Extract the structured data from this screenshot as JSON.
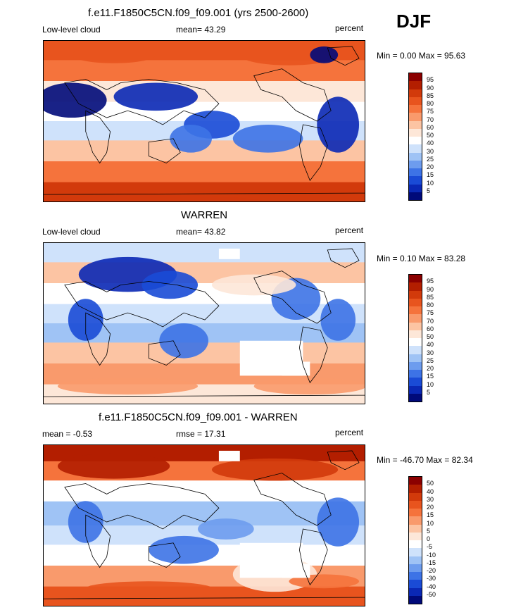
{
  "season": "DJF",
  "panels": [
    {
      "title": "f.e11.F1850C5CN.f09_f09.001 (yrs 2500-2600)",
      "left_label": "Low-level cloud",
      "center_label": "mean=  43.29",
      "right_label": "percent",
      "minmax": "Min =   0.00 Max =  95.63",
      "palette": "abs"
    },
    {
      "title": "WARREN",
      "left_label": "Low-level cloud",
      "center_label": "mean=  43.82",
      "right_label": "percent",
      "minmax": "Min =   0.10 Max =  83.28",
      "palette": "abs"
    },
    {
      "title": "f.e11.F1850C5CN.f09_f09.001 - WARREN",
      "left_label": "mean =  -0.53",
      "center_label": "rmse =  17.31",
      "right_label": "percent",
      "minmax": "Min = -46.70 Max =  82.34",
      "palette": "diff"
    }
  ],
  "colorbars": {
    "abs": {
      "labels": [
        "95",
        "90",
        "85",
        "80",
        "75",
        "70",
        "60",
        "50",
        "40",
        "30",
        "25",
        "20",
        "15",
        "10",
        "5"
      ],
      "colors": [
        "#8b0000",
        "#b31e00",
        "#d23a0b",
        "#e8541e",
        "#f5733c",
        "#f99a6c",
        "#fcc4a3",
        "#fde7d8",
        "#ffffff",
        "#cfe2fb",
        "#9fc3f5",
        "#6d9cee",
        "#3d73e6",
        "#1a4bd6",
        "#0a28b5",
        "#000a7a"
      ]
    },
    "diff": {
      "labels": [
        "50",
        "40",
        "30",
        "20",
        "15",
        "10",
        "5",
        "0",
        "-5",
        "-10",
        "-15",
        "-20",
        "-30",
        "-40",
        "-50"
      ],
      "colors": [
        "#8b0000",
        "#b31e00",
        "#d23a0b",
        "#e8541e",
        "#f5733c",
        "#f99a6c",
        "#fcc4a3",
        "#fde7d8",
        "#ffffff",
        "#cfe2fb",
        "#9fc3f5",
        "#6d9cee",
        "#3d73e6",
        "#1a4bd6",
        "#0a28b5",
        "#000a7a"
      ]
    }
  }
}
